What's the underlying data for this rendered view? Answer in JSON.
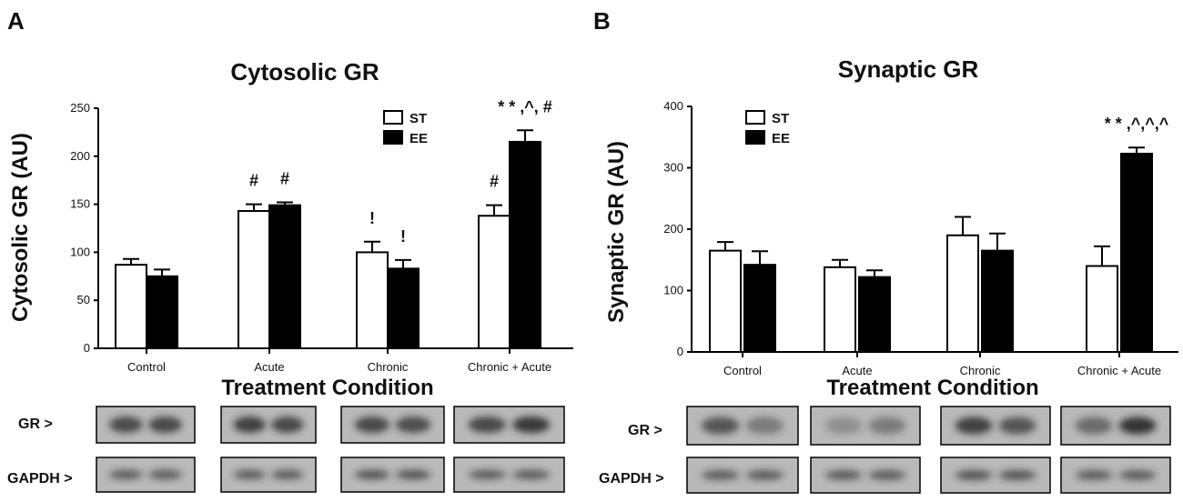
{
  "panels": [
    {
      "letter": "A"
    },
    {
      "letter": "B"
    }
  ],
  "legend": {
    "st": "ST",
    "ee": "EE"
  },
  "blot_labels": {
    "gr": "GR >",
    "gapdh": "GAPDH >"
  },
  "colors": {
    "st_fill": "#ffffff",
    "ee_fill": "#000000",
    "axis": "#000000",
    "blot_bg": "#b9b9b9",
    "band": "#2a2a2a"
  },
  "chart_data": [
    {
      "type": "bar",
      "title": "Cytosolic GR",
      "xlabel": "Treatment Condition",
      "ylabel": "Cytosolic GR (AU)",
      "categories": [
        "Control",
        "Acute",
        "Chronic",
        "Chronic + Acute"
      ],
      "ylim": [
        0,
        250
      ],
      "yticks": [
        0,
        50,
        100,
        150,
        200,
        250
      ],
      "series": [
        {
          "name": "ST",
          "values": [
            87,
            143,
            100,
            138
          ],
          "errors": [
            6,
            7,
            11,
            11
          ]
        },
        {
          "name": "EE",
          "values": [
            75,
            149,
            83,
            215
          ],
          "errors": [
            7,
            3,
            9,
            12
          ]
        }
      ],
      "annotations": [
        {
          "category": 1,
          "series": 0,
          "text": "#"
        },
        {
          "category": 1,
          "series": 1,
          "text": "#"
        },
        {
          "category": 2,
          "series": 0,
          "text": "!"
        },
        {
          "category": 2,
          "series": 1,
          "text": "!"
        },
        {
          "category": 3,
          "series": 0,
          "text": "#"
        },
        {
          "category": 3,
          "series": 1,
          "text": "* * ,^, #"
        }
      ],
      "legend_position": "top-right",
      "blot_intensity": {
        "gr": [
          [
            0.78,
            0.8
          ],
          [
            0.85,
            0.8
          ],
          [
            0.8,
            0.75
          ],
          [
            0.8,
            0.9
          ]
        ],
        "gapdh": [
          [
            0.65,
            0.65
          ],
          [
            0.65,
            0.65
          ],
          [
            0.7,
            0.7
          ],
          [
            0.65,
            0.65
          ]
        ]
      }
    },
    {
      "type": "bar",
      "title": "Synaptic GR",
      "xlabel": "Treatment Condition",
      "ylabel": "Synaptic GR (AU)",
      "categories": [
        "Control",
        "Acute",
        "Chronic",
        "Chronic + Acute"
      ],
      "ylim": [
        0,
        400
      ],
      "yticks": [
        0,
        100,
        200,
        300,
        400
      ],
      "series": [
        {
          "name": "ST",
          "values": [
            165,
            138,
            190,
            140
          ],
          "errors": [
            14,
            12,
            30,
            32
          ]
        },
        {
          "name": "EE",
          "values": [
            142,
            122,
            165,
            323
          ],
          "errors": [
            22,
            11,
            28,
            10
          ]
        }
      ],
      "annotations": [
        {
          "category": 3,
          "series": 1,
          "text": "* * ,^,^,^"
        }
      ],
      "legend_position": "top-left",
      "blot_intensity": {
        "gr": [
          [
            0.7,
            0.45
          ],
          [
            0.3,
            0.45
          ],
          [
            0.85,
            0.7
          ],
          [
            0.55,
            0.95
          ]
        ],
        "gapdh": [
          [
            0.65,
            0.65
          ],
          [
            0.65,
            0.65
          ],
          [
            0.7,
            0.7
          ],
          [
            0.65,
            0.65
          ]
        ]
      }
    }
  ]
}
